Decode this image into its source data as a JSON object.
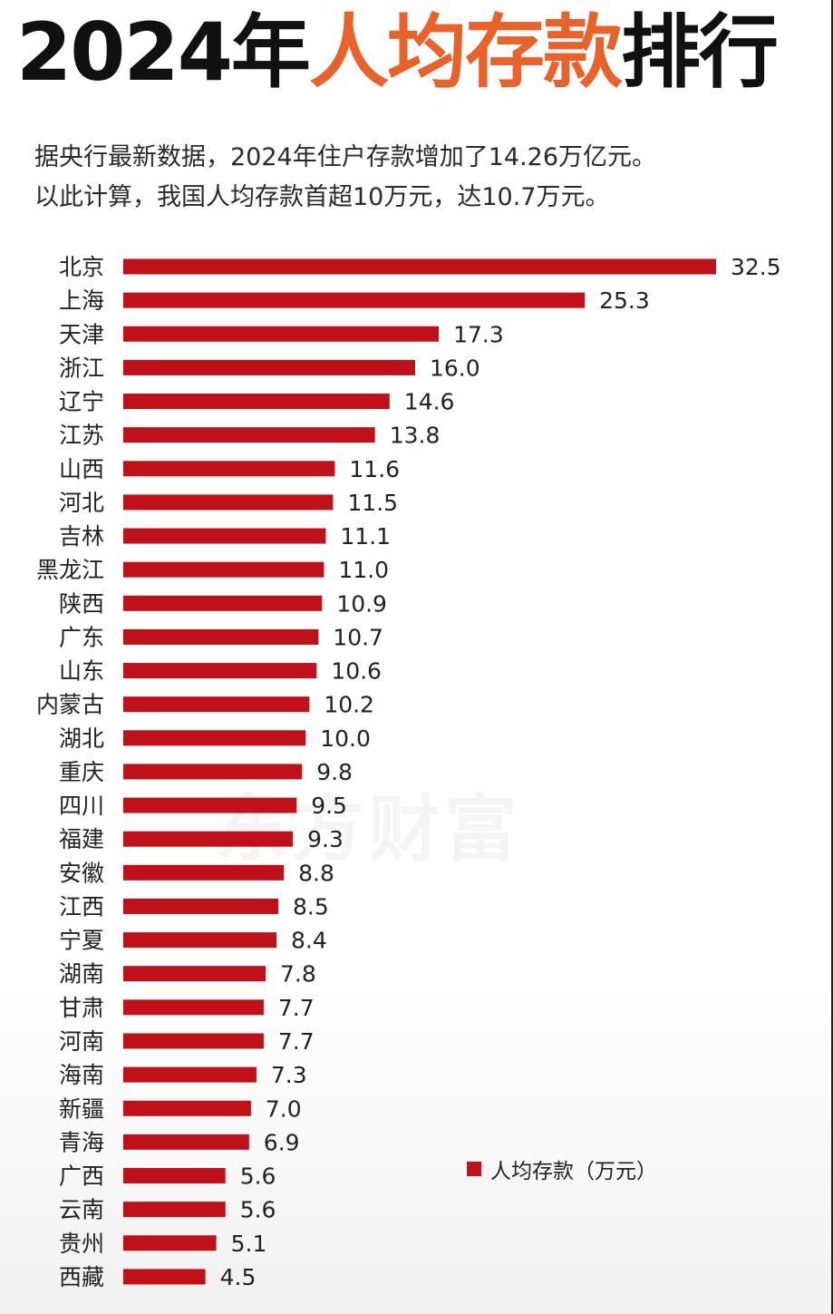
{
  "title": {
    "prefix": "2024年",
    "highlight": "人均存款",
    "suffix": "排行"
  },
  "subtitle": {
    "line1": "据央行最新数据，2024年住户存款增加了14.26万亿元。",
    "line2": "以此计算，我国人均存款首超10万元，达10.7万元。"
  },
  "watermark": "东方财富",
  "legend": {
    "label": "人均存款（万元）"
  },
  "colors": {
    "bar": "#c0111b",
    "title_highlight": "#e8622a"
  },
  "chart_data": {
    "type": "bar",
    "orientation": "horizontal",
    "categories": [
      "北京",
      "上海",
      "天津",
      "浙江",
      "辽宁",
      "江苏",
      "山西",
      "河北",
      "吉林",
      "黑龙江",
      "陕西",
      "广东",
      "山东",
      "内蒙古",
      "湖北",
      "重庆",
      "四川",
      "福建",
      "安徽",
      "江西",
      "宁夏",
      "湖南",
      "甘肃",
      "河南",
      "海南",
      "新疆",
      "青海",
      "广西",
      "云南",
      "贵州",
      "西藏"
    ],
    "value_labels": [
      "32.5",
      "25.3",
      "17.3",
      "16.0",
      "14.6",
      "13.8",
      "11.6",
      "11.5",
      "11.1",
      "11.0",
      "10.9",
      "10.7",
      "10.6",
      "10.2",
      "10.0",
      "9.8",
      "9.5",
      "9.3",
      "8.8",
      "8.5",
      "8.4",
      "7.8",
      "7.7",
      "7.7",
      "7.3",
      "7.0",
      "6.9",
      "5.6",
      "5.6",
      "5.1",
      "4.5"
    ],
    "series": [
      {
        "name": "人均存款（万元）",
        "values": [
          32.5,
          25.3,
          17.3,
          16.0,
          14.6,
          13.8,
          11.6,
          11.5,
          11.1,
          11.0,
          10.9,
          10.7,
          10.6,
          10.2,
          10.0,
          9.8,
          9.5,
          9.3,
          8.8,
          8.5,
          8.4,
          7.8,
          7.7,
          7.7,
          7.3,
          7.0,
          6.9,
          5.6,
          5.6,
          5.1,
          4.5
        ]
      }
    ],
    "xlim": [
      0,
      32.5
    ],
    "grid": false,
    "legend_position": "bottom-right"
  }
}
